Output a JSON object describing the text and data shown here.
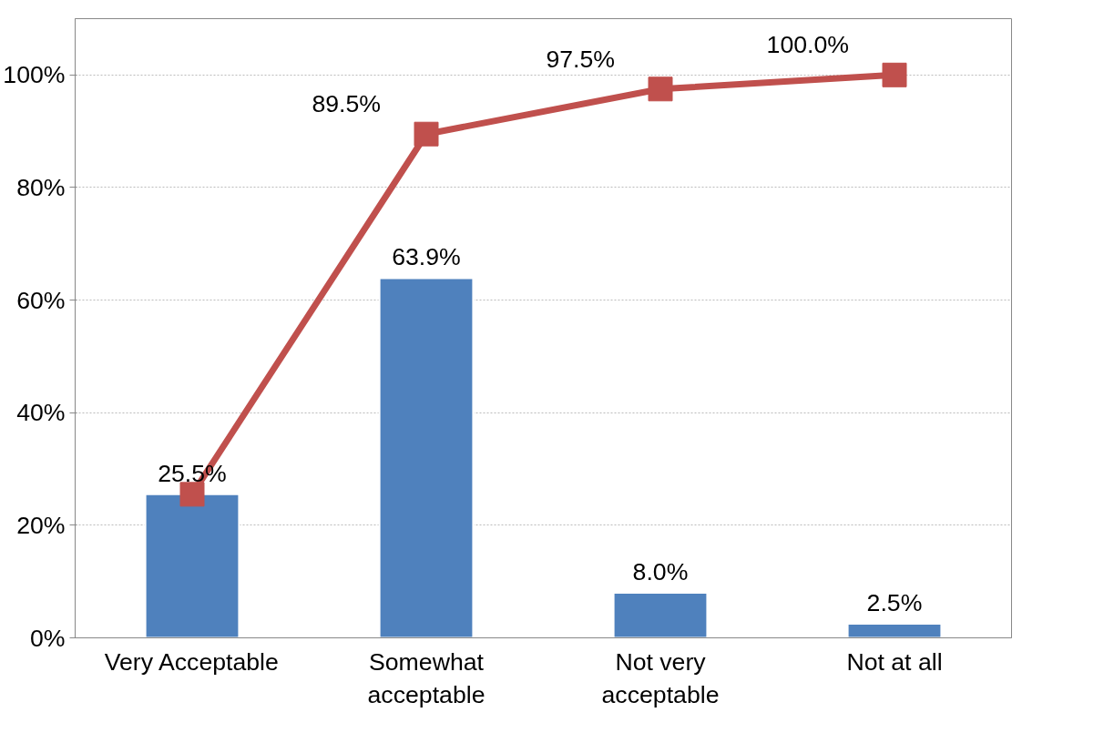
{
  "chart_data": {
    "type": "bar",
    "categories": [
      "Very Acceptable",
      "Somewhat\nacceptable",
      "Not very\nacceptable",
      "Not at all"
    ],
    "series": [
      {
        "color": "#4f81bd",
        "values": [
          25.5,
          63.9,
          8.0,
          2.5
        ],
        "value_labels": [
          "25.5%",
          "63.9%",
          "8.0%",
          "2.5%"
        ]
      },
      {
        "type": "line",
        "color": "#c0504d",
        "values": [
          25.5,
          89.5,
          97.5,
          100.0
        ],
        "value_labels": [
          null,
          "89.5%",
          "97.5%",
          "100.0%"
        ],
        "marker": "square"
      }
    ],
    "ylim": [
      0,
      110
    ],
    "yticks": [
      {
        "value": 0,
        "label": "0%"
      },
      {
        "value": 20,
        "label": "20%"
      },
      {
        "value": 40,
        "label": "40%"
      },
      {
        "value": 60,
        "label": "60%"
      },
      {
        "value": 80,
        "label": "80%"
      },
      {
        "value": 100,
        "label": "100%"
      }
    ],
    "grid": "y"
  }
}
